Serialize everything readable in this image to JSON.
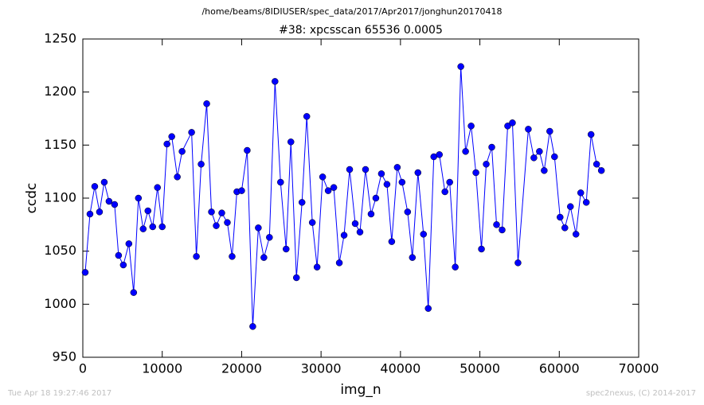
{
  "chart_data": {
    "type": "line",
    "suptitle": "/home/beams/8IDIUSER/spec_data/2017/Apr2017/jonghun20170418",
    "title": "#38: xpcsscan 65536 0.0005",
    "x_label": "img_n",
    "y_label": "ccdc",
    "footer_left": "Tue Apr 18 19:27:46 2017",
    "footer_right": "spec2nexus, (C) 2014-2017",
    "x": [
      300,
      900,
      1500,
      2100,
      2700,
      3300,
      4000,
      4500,
      5100,
      5800,
      6400,
      7000,
      7600,
      8200,
      8800,
      9400,
      10000,
      10600,
      11200,
      11900,
      12500,
      13700,
      14300,
      14900,
      15600,
      16200,
      16800,
      17500,
      18200,
      18800,
      19400,
      20000,
      20700,
      21400,
      22100,
      22800,
      23500,
      24200,
      24900,
      25600,
      26200,
      26900,
      27600,
      28200,
      28900,
      29500,
      30200,
      30900,
      31600,
      32300,
      32900,
      33600,
      34300,
      34900,
      35600,
      36300,
      36900,
      37600,
      38300,
      38900,
      39600,
      40200,
      40900,
      41500,
      42200,
      42900,
      43500,
      44200,
      44900,
      45600,
      46200,
      46900,
      47600,
      48200,
      48900,
      49500,
      50200,
      50800,
      51500,
      52100,
      52800,
      53500,
      54100,
      54800,
      56100,
      56800,
      57500,
      58100,
      58800,
      59400,
      60100,
      60700,
      61400,
      62100,
      62700,
      63400,
      64000,
      64700,
      65300
    ],
    "series": [
      {
        "name": "ccdc",
        "color": "#0000ff",
        "values": [
          1030,
          1085,
          1111,
          1087,
          1115,
          1097,
          1094,
          1046,
          1037,
          1057,
          1011,
          1100,
          1071,
          1088,
          1073,
          1110,
          1073,
          1151,
          1158,
          1120,
          1144,
          1162,
          1045,
          1132,
          1189,
          1087,
          1074,
          1086,
          1077,
          1045,
          1106,
          1107,
          1145,
          979,
          1072,
          1044,
          1063,
          1210,
          1115,
          1052,
          1153,
          1025,
          1096,
          1177,
          1077,
          1035,
          1120,
          1107,
          1110,
          1039,
          1065,
          1127,
          1076,
          1068,
          1127,
          1085,
          1100,
          1123,
          1113,
          1059,
          1129,
          1115,
          1087,
          1044,
          1124,
          1066,
          996,
          1139,
          1141,
          1106,
          1115,
          1035,
          1224,
          1144,
          1168,
          1124,
          1052,
          1132,
          1148,
          1075,
          1070,
          1168,
          1171,
          1039,
          1165,
          1138,
          1144,
          1126,
          1163,
          1139,
          1082,
          1072,
          1092,
          1066,
          1105,
          1096,
          1160,
          1132,
          1126
        ]
      }
    ],
    "xlim": [
      0,
      70000
    ],
    "xticks": [
      0,
      10000,
      20000,
      30000,
      40000,
      50000,
      60000,
      70000
    ],
    "ylim": [
      950,
      1250
    ],
    "yticks": [
      950,
      1000,
      1050,
      1100,
      1150,
      1200,
      1250
    ],
    "grid": false
  }
}
